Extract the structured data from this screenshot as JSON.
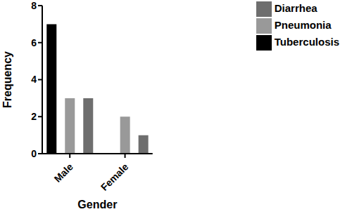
{
  "chart_data": {
    "type": "bar",
    "x_label": "Gender",
    "y_label": "Frequency",
    "categories": [
      "Male",
      "Female"
    ],
    "series": [
      {
        "name": "Tuberculosis",
        "color": "#000000",
        "values": [
          7,
          0
        ]
      },
      {
        "name": "Pneumonia",
        "color": "#999999",
        "values": [
          3,
          2
        ]
      },
      {
        "name": "Diarrhea",
        "color": "#6e6e6e",
        "values": [
          3,
          1
        ]
      }
    ],
    "ylim": [
      0,
      8
    ],
    "yticks": [
      0,
      2,
      4,
      6,
      8
    ],
    "grid": false,
    "legend": "right"
  }
}
